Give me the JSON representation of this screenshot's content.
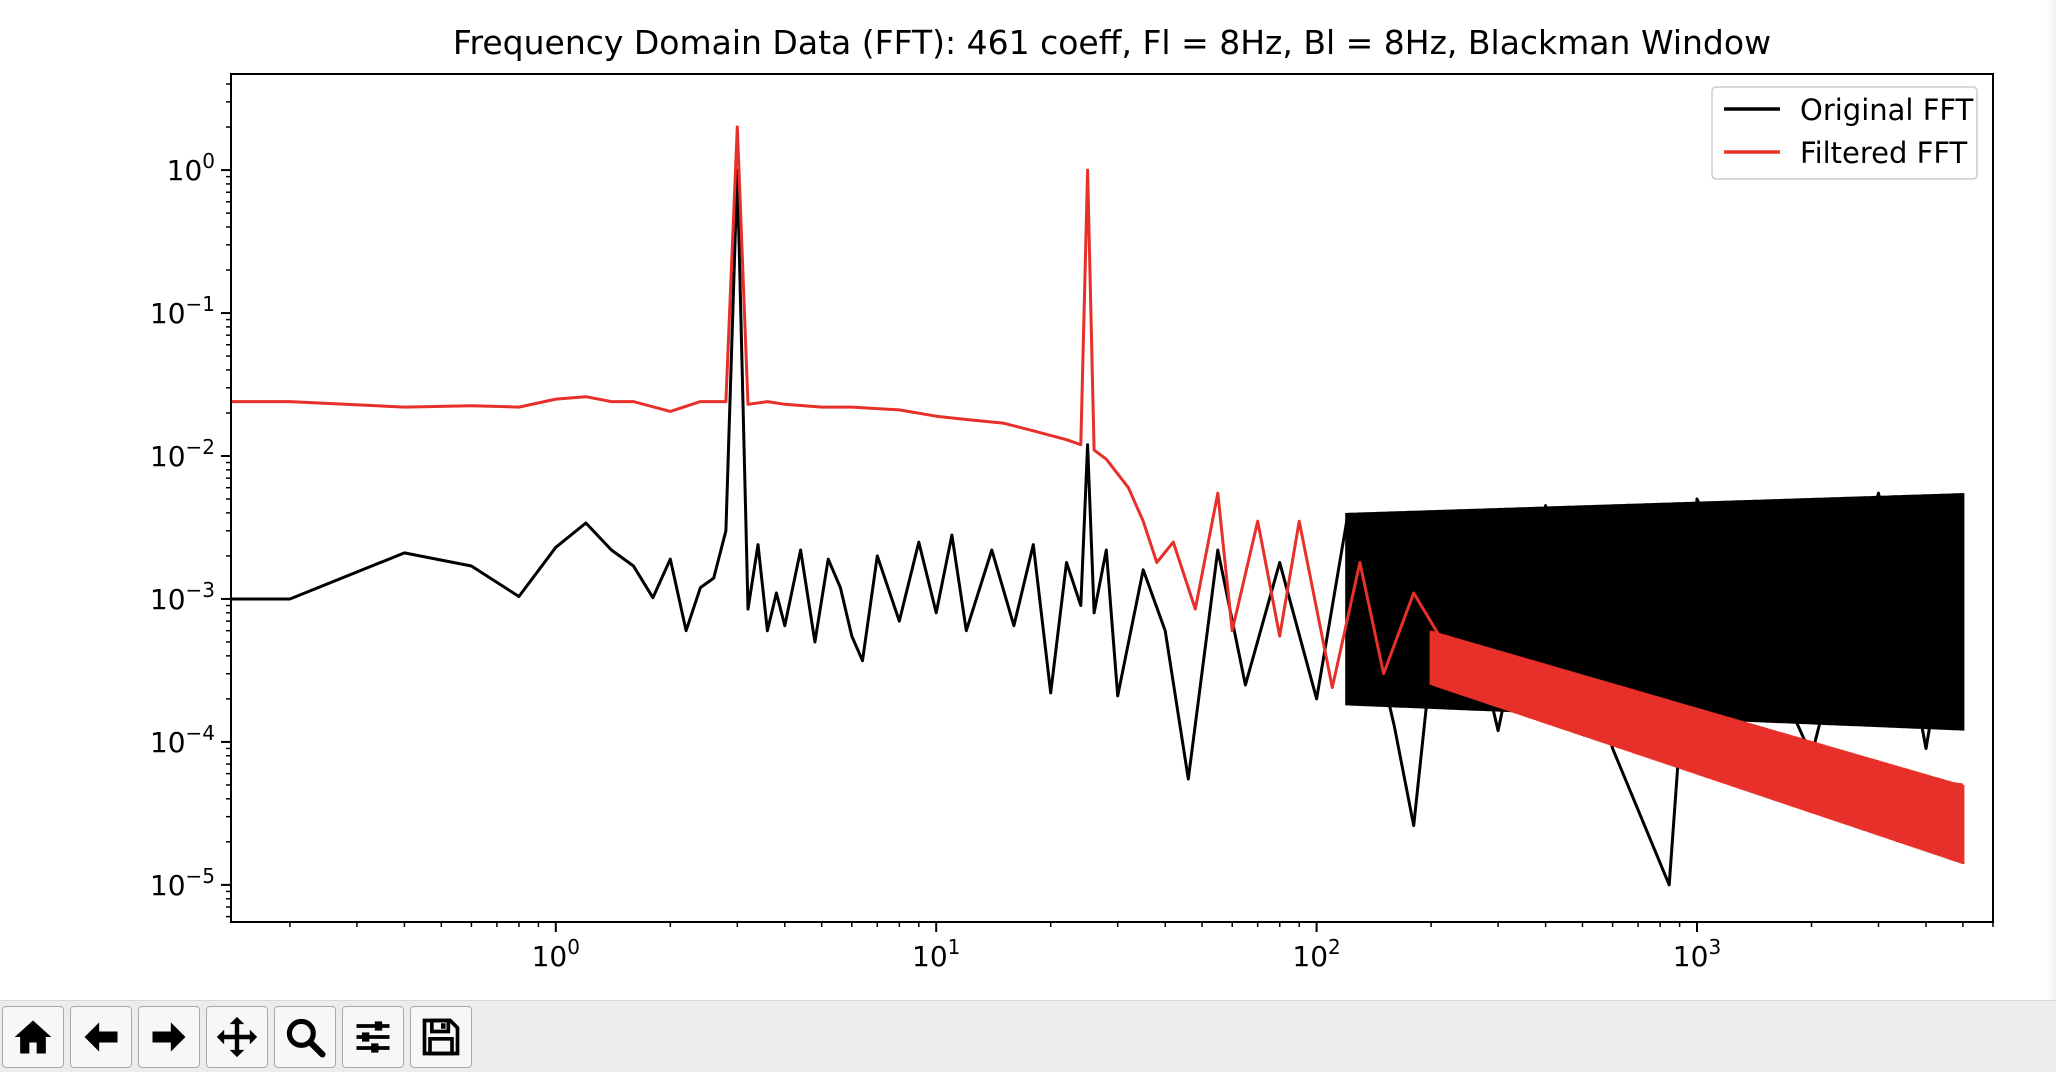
{
  "chart_data": {
    "type": "line",
    "title": "Frequency Domain Data (FFT): 461 coeff, Fl = 8Hz, Bl = 8Hz, Blackman Window",
    "xlabel": "",
    "ylabel": "",
    "xscale": "log",
    "yscale": "log",
    "xlim": [
      0.14,
      6000
    ],
    "ylim": [
      5.5e-06,
      4.7
    ],
    "x_ticks": [
      {
        "value": 1,
        "base": "10",
        "exp": "0"
      },
      {
        "value": 10,
        "base": "10",
        "exp": "1"
      },
      {
        "value": 100,
        "base": "10",
        "exp": "2"
      },
      {
        "value": 1000,
        "base": "10",
        "exp": "3"
      }
    ],
    "y_ticks": [
      {
        "value": 1,
        "base": "10",
        "exp": "0"
      },
      {
        "value": 0.1,
        "base": "10",
        "exp": "−1"
      },
      {
        "value": 0.01,
        "base": "10",
        "exp": "−2"
      },
      {
        "value": 0.001,
        "base": "10",
        "exp": "−3"
      },
      {
        "value": 0.0001,
        "base": "10",
        "exp": "−4"
      },
      {
        "value": 1e-05,
        "base": "10",
        "exp": "−5"
      }
    ],
    "grid": false,
    "legend_position": "top-right",
    "series": [
      {
        "name": "Original FFT",
        "color": "#000000",
        "points": [
          [
            0.1,
            0.001
          ],
          [
            0.2,
            0.001
          ],
          [
            0.4,
            0.0021
          ],
          [
            0.6,
            0.0017
          ],
          [
            0.8,
            0.00104
          ],
          [
            1.0,
            0.0023
          ],
          [
            1.2,
            0.0034
          ],
          [
            1.4,
            0.0022
          ],
          [
            1.6,
            0.0017
          ],
          [
            1.8,
            0.00102
          ],
          [
            2.0,
            0.0019
          ],
          [
            2.2,
            0.0006
          ],
          [
            2.4,
            0.0012
          ],
          [
            2.6,
            0.0014
          ],
          [
            2.8,
            0.003
          ],
          [
            3.0,
            1.0
          ],
          [
            3.2,
            0.00085
          ],
          [
            3.4,
            0.0024
          ],
          [
            3.6,
            0.0006
          ],
          [
            3.8,
            0.0011
          ],
          [
            4.0,
            0.00065
          ],
          [
            4.4,
            0.0022
          ],
          [
            4.8,
            0.0005
          ],
          [
            5.2,
            0.0019
          ],
          [
            5.6,
            0.0012
          ],
          [
            6.0,
            0.00055
          ],
          [
            6.4,
            0.00037
          ],
          [
            7.0,
            0.002
          ],
          [
            8.0,
            0.0007
          ],
          [
            9.0,
            0.0025
          ],
          [
            10.0,
            0.0008
          ],
          [
            11.0,
            0.0028
          ],
          [
            12.0,
            0.0006
          ],
          [
            14.0,
            0.0022
          ],
          [
            16.0,
            0.00065
          ],
          [
            18.0,
            0.0024
          ],
          [
            20.0,
            0.00022
          ],
          [
            22.0,
            0.0018
          ],
          [
            24.0,
            0.0009
          ],
          [
            25.0,
            0.012
          ],
          [
            26.0,
            0.0008
          ],
          [
            28.0,
            0.0022
          ],
          [
            30.0,
            0.00021
          ],
          [
            35.0,
            0.0016
          ],
          [
            40.0,
            0.0006
          ],
          [
            46.0,
            5.5e-05
          ],
          [
            55.0,
            0.0022
          ],
          [
            65.0,
            0.00025
          ],
          [
            80.0,
            0.0018
          ],
          [
            100.0,
            0.0002
          ],
          [
            120.0,
            0.0035
          ],
          [
            160.0,
            0.00013
          ],
          [
            180.0,
            2.6e-05
          ],
          [
            220.0,
            0.004
          ],
          [
            300.0,
            0.00012
          ],
          [
            400.0,
            0.0045
          ],
          [
            600.0,
            9e-05
          ],
          [
            845.0,
            1e-05
          ],
          [
            1000.0,
            0.005
          ],
          [
            2000.0,
            8e-05
          ],
          [
            3000.0,
            0.0055
          ],
          [
            4000.0,
            9e-05
          ],
          [
            5000.0,
            0.003
          ]
        ],
        "band": {
          "x_start": 120,
          "x_end": 5000,
          "upper_start": 0.004,
          "upper_end": 0.0055,
          "lower_start": 0.00018,
          "lower_end": 0.00012
        }
      },
      {
        "name": "Filtered FFT",
        "color": "#e8302a",
        "points": [
          [
            0.1,
            0.024
          ],
          [
            0.2,
            0.024
          ],
          [
            0.4,
            0.022
          ],
          [
            0.6,
            0.0225
          ],
          [
            0.8,
            0.022
          ],
          [
            1.0,
            0.025
          ],
          [
            1.2,
            0.026
          ],
          [
            1.4,
            0.024
          ],
          [
            1.6,
            0.024
          ],
          [
            2.0,
            0.0205
          ],
          [
            2.4,
            0.024
          ],
          [
            2.8,
            0.024
          ],
          [
            3.0,
            2.0
          ],
          [
            3.2,
            0.023
          ],
          [
            3.6,
            0.024
          ],
          [
            4.0,
            0.023
          ],
          [
            5.0,
            0.022
          ],
          [
            6.0,
            0.022
          ],
          [
            8.0,
            0.021
          ],
          [
            10.0,
            0.019
          ],
          [
            12.0,
            0.018
          ],
          [
            15.0,
            0.017
          ],
          [
            18.0,
            0.015
          ],
          [
            22.0,
            0.013
          ],
          [
            24.0,
            0.012
          ],
          [
            25.0,
            1.0
          ],
          [
            26.0,
            0.011
          ],
          [
            28.0,
            0.0095
          ],
          [
            32.0,
            0.006
          ],
          [
            35.0,
            0.0035
          ],
          [
            38.0,
            0.0018
          ],
          [
            42.0,
            0.0025
          ],
          [
            48.0,
            0.00085
          ],
          [
            55.0,
            0.0055
          ],
          [
            60.0,
            0.0006
          ],
          [
            70.0,
            0.0035
          ],
          [
            80.0,
            0.00055
          ],
          [
            90.0,
            0.0035
          ],
          [
            110.0,
            0.00024
          ],
          [
            130.0,
            0.0018
          ],
          [
            150.0,
            0.0003
          ],
          [
            180.0,
            0.0011
          ],
          [
            220.0,
            0.00045
          ],
          [
            300.0,
            0.00035
          ],
          [
            500.0,
            0.00018
          ],
          [
            1000.0,
            9.5e-05
          ],
          [
            2000.0,
            7e-05
          ],
          [
            5000.0,
            5e-05
          ]
        ],
        "band": {
          "x_start": 200,
          "x_end": 5000,
          "upper_start": 0.0006,
          "upper_end": 5e-05,
          "lower_start": 0.00025,
          "lower_end": 1.4e-05
        }
      }
    ]
  },
  "toolbar": {
    "buttons": [
      {
        "icon": "home-icon"
      },
      {
        "icon": "back-arrow-icon"
      },
      {
        "icon": "forward-arrow-icon"
      },
      {
        "icon": "pan-icon"
      },
      {
        "icon": "zoom-icon"
      },
      {
        "icon": "configure-subplots-icon"
      },
      {
        "icon": "save-icon"
      }
    ]
  }
}
